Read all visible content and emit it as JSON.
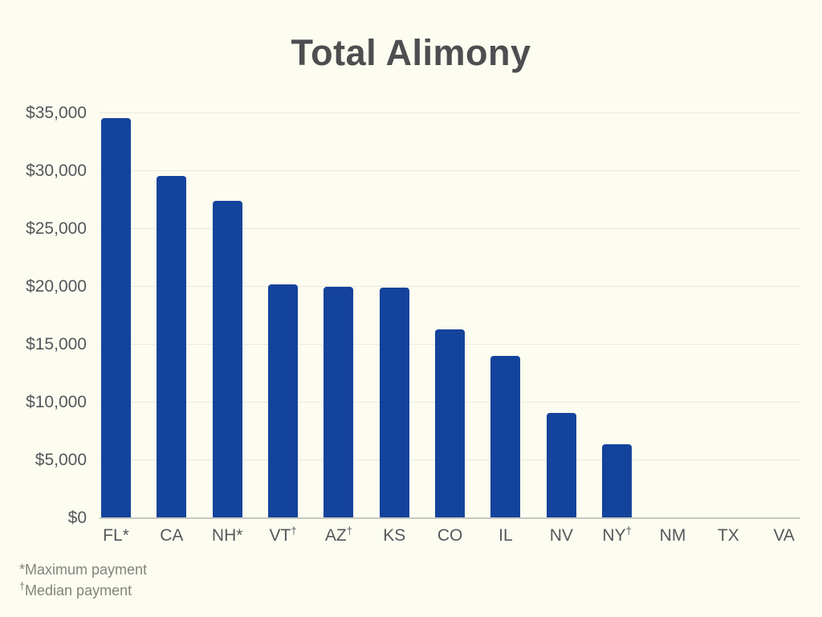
{
  "chart_data": {
    "type": "bar",
    "title": "Total Alimony",
    "categories": [
      "FL*",
      "CA",
      "NH*",
      "VT†",
      "AZ†",
      "KS",
      "CO",
      "IL",
      "NV",
      "NY†",
      "NM",
      "TX",
      "VA"
    ],
    "values": [
      34600,
      29600,
      27400,
      20200,
      20000,
      19900,
      16300,
      14000,
      9100,
      6400,
      0,
      0,
      0
    ],
    "xlabel": "",
    "ylabel": "",
    "ylim": [
      0,
      35000
    ],
    "y_tick_step": 5000,
    "y_tick_labels": [
      "$0",
      "$5,000",
      "$10,000",
      "$15,000",
      "$20,000",
      "$25,000",
      "$30,000",
      "$35,000"
    ],
    "grid": "horizontal-on",
    "legend": "none",
    "footnotes": [
      "*Maximum payment",
      "†Median payment"
    ],
    "colors": {
      "bar": "#14439B",
      "background": "#FCFCF0",
      "gridline": "#E9E9E0",
      "axis_line": "#C8C8C2",
      "title_text": "#4C4E50",
      "axis_text": "#54585B",
      "footnote_text": "#83837D"
    }
  }
}
